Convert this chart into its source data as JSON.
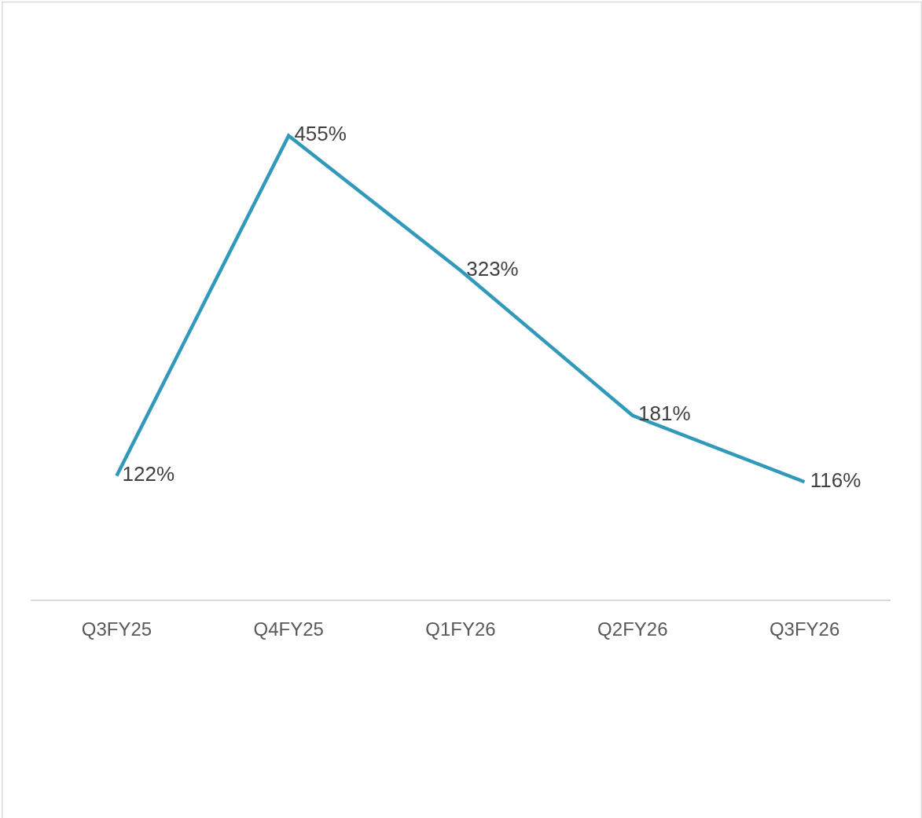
{
  "chart_data": {
    "type": "line",
    "categories": [
      "Q3FY25",
      "Q4FY25",
      "Q1FY26",
      "Q2FY26",
      "Q3FY26"
    ],
    "series": [
      {
        "color": "#3399bb",
        "values": [
          122,
          455,
          323,
          181,
          116
        ],
        "value_labels": [
          "122%",
          "455%",
          "323%",
          "181%",
          "116%"
        ]
      }
    ],
    "marker": "none",
    "line_style": "solid",
    "tick_labels": "x"
  }
}
